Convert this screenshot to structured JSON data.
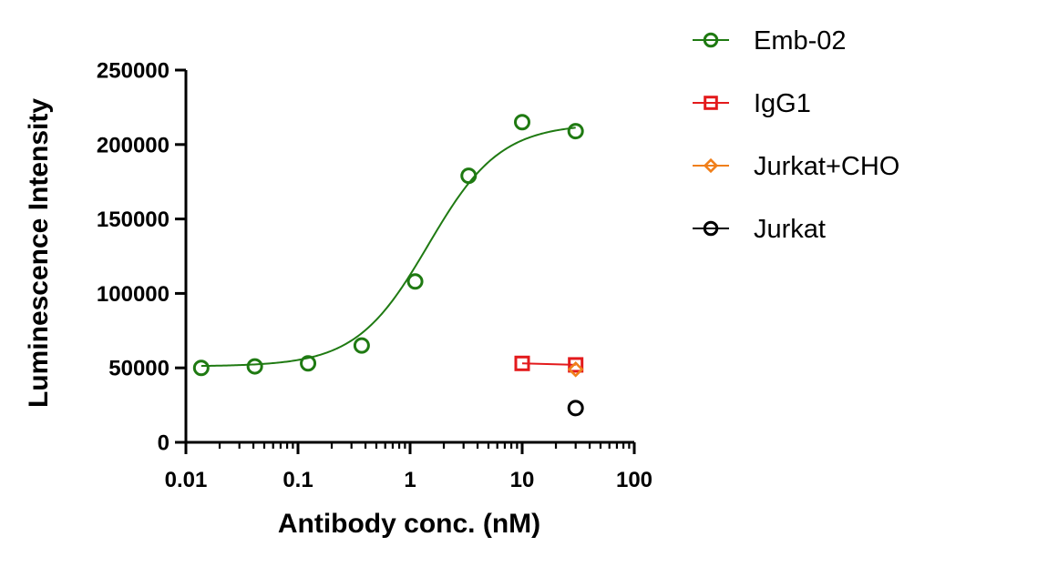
{
  "chart_data": {
    "type": "scatter",
    "xlabel": "Antibody conc. (nM)",
    "ylabel": "Luminescence Intensity",
    "x_scale": "log",
    "xlim": [
      0.01,
      100
    ],
    "ylim": [
      0,
      250000
    ],
    "x_ticks": [
      0.01,
      0.1,
      1,
      10,
      100
    ],
    "x_tick_labels": [
      "0.01",
      "0.1",
      "1",
      "10",
      "100"
    ],
    "y_ticks": [
      0,
      50000,
      100000,
      150000,
      200000,
      250000
    ],
    "y_tick_labels": [
      "0",
      "50000",
      "100000",
      "150000",
      "200000",
      "250000"
    ],
    "grid": false,
    "legend_position": "right",
    "series": [
      {
        "name": "Emb-02",
        "color": "#1f7a12",
        "marker": "circle",
        "x": [
          0.0137,
          0.0412,
          0.123,
          0.37,
          1.11,
          3.33,
          10,
          30
        ],
        "y": [
          50000,
          51000,
          53000,
          65000,
          108000,
          179000,
          215000,
          209000
        ],
        "fit_curve": {
          "model": "four-parameter logistic",
          "bottom": 51000,
          "top": 214000,
          "ec50": 1.45,
          "hill": 1.35
        }
      },
      {
        "name": "IgG1",
        "color": "#e31a1c",
        "marker": "square",
        "x": [
          10,
          30
        ],
        "y": [
          53000,
          52000
        ],
        "connected": true
      },
      {
        "name": "Jurkat+CHO",
        "color": "#f07f1a",
        "marker": "diamond",
        "x": [
          30
        ],
        "y": [
          49000
        ]
      },
      {
        "name": "Jurkat",
        "color": "#000000",
        "marker": "circle",
        "x": [
          30
        ],
        "y": [
          23000
        ]
      }
    ]
  }
}
